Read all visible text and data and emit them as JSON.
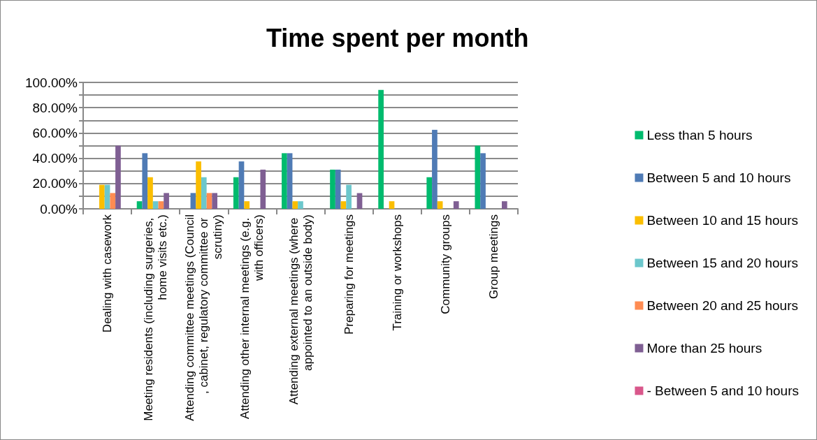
{
  "chart_data": {
    "type": "bar",
    "title": "Time spent per month",
    "categories": [
      "Dealing with casework",
      "Meeting residents (including surgeries, home visits etc.)",
      "Attending committee meetings (Council, cabinet, regulatory committee or scrutiny)",
      "Attending other internal meetings (e.g. with officers)",
      "Attending external meetings (where appointed to an outside body)",
      "Preparing for meetings",
      "Training or workshops",
      "Community groups",
      "Group meetings"
    ],
    "series": [
      {
        "name": "Less than 5 hours",
        "color": "#00bb6e",
        "values": [
          0,
          6,
          0,
          25,
          44,
          31,
          94,
          25,
          50
        ]
      },
      {
        "name": "Between 5 and 10 hours",
        "color": "#4f7bb5",
        "values": [
          0,
          44,
          12.5,
          37.5,
          44,
          31,
          0,
          62.5,
          44
        ]
      },
      {
        "name": "Between 10 and 15 hours",
        "color": "#fbbe00",
        "values": [
          19,
          25,
          37.5,
          6,
          6,
          6,
          6,
          6,
          0
        ]
      },
      {
        "name": "Between 15 and 20 hours",
        "color": "#6cc7cc",
        "values": [
          19,
          6,
          25,
          0,
          6,
          19,
          0,
          0,
          0
        ]
      },
      {
        "name": "Between 20 and 25 hours",
        "color": "#ff8c52",
        "values": [
          12.5,
          6,
          12.5,
          0,
          0,
          0,
          0,
          0,
          0
        ]
      },
      {
        "name": "More than 25 hours",
        "color": "#7f5f93",
        "values": [
          50,
          12.5,
          12.5,
          31,
          0,
          12.5,
          0,
          6,
          6
        ]
      },
      {
        "name": "- Between 5 and 10 hours",
        "color": "#d9578b",
        "values": [
          null,
          null,
          null,
          null,
          null,
          null,
          null,
          null,
          null
        ]
      }
    ],
    "ylim": [
      0,
      100
    ],
    "yticks": [
      {
        "value": 0,
        "label": "0.00%"
      },
      {
        "value": 10,
        "label": null
      },
      {
        "value": 20,
        "label": "20.00%"
      },
      {
        "value": 30,
        "label": null
      },
      {
        "value": 40,
        "label": "40.00%"
      },
      {
        "value": 50,
        "label": null
      },
      {
        "value": 60,
        "label": "60.00%"
      },
      {
        "value": 70,
        "label": null
      },
      {
        "value": 80,
        "label": "80.00%"
      },
      {
        "value": 90,
        "label": null
      },
      {
        "value": 100,
        "label": "100.00%"
      }
    ],
    "grid": "y",
    "legend": "right"
  }
}
